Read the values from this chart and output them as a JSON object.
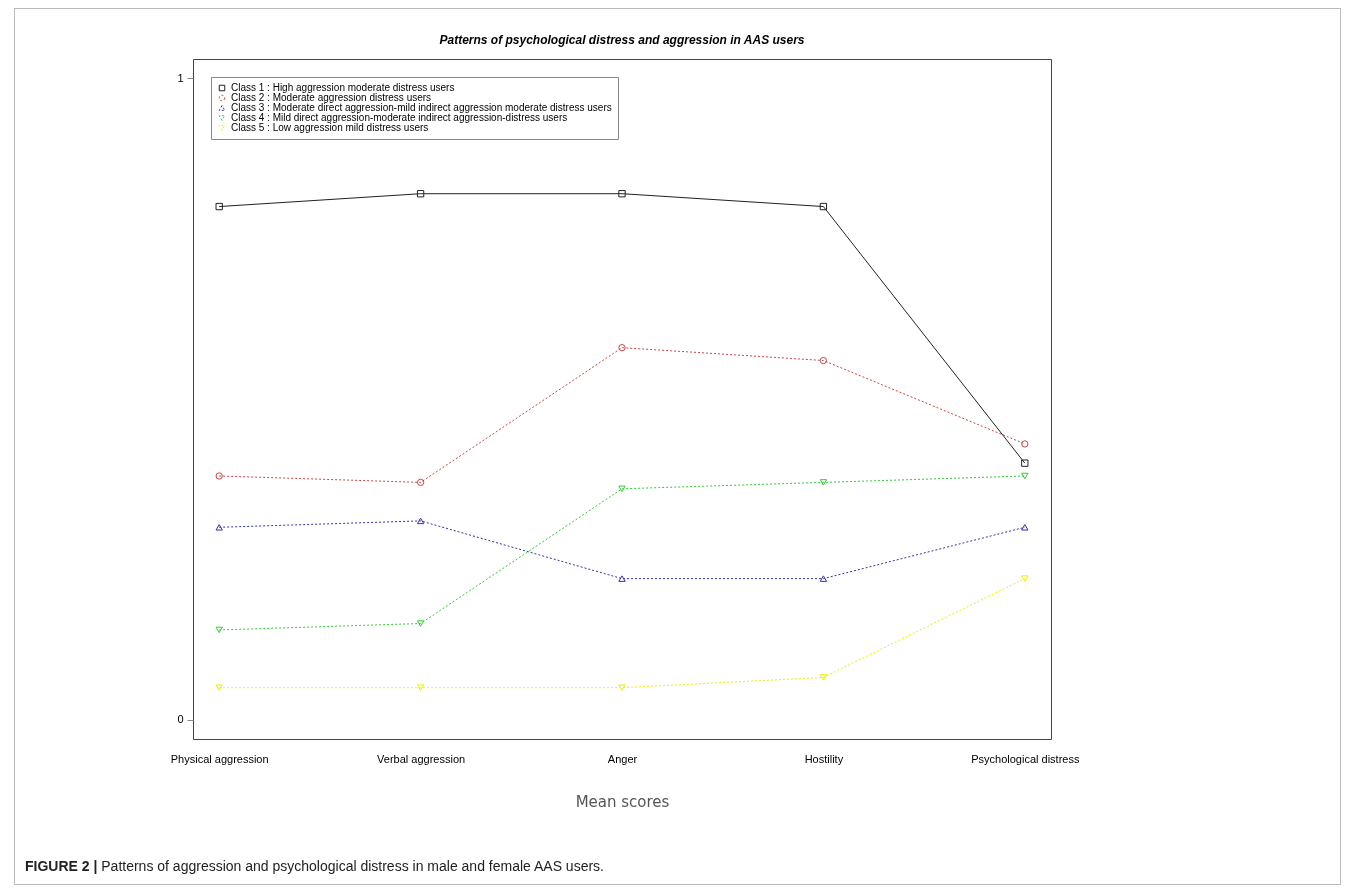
{
  "chart_data": {
    "type": "line",
    "title": "Patterns of psychological distress and aggression in AAS users",
    "xlabel": "Mean scores",
    "categories": [
      "Physical aggression",
      "Verbal aggression",
      "Anger",
      "Hostility",
      "Psychological distress"
    ],
    "series": [
      {
        "name": "Class 1 : High aggression moderate distress users",
        "color": "#222222",
        "marker": "square",
        "line_style": "solid",
        "values": [
          0.8,
          0.82,
          0.82,
          0.8,
          0.4
        ]
      },
      {
        "name": "Class 2 : Moderate aggression distress users",
        "color": "#cc4444",
        "marker": "circle",
        "line_style": "dotted",
        "values": [
          0.38,
          0.37,
          0.58,
          0.56,
          0.43
        ]
      },
      {
        "name": "Class 3 : Moderate direct aggression-mild indirect aggression moderate distress users",
        "color": "#3333aa",
        "marker": "triangle",
        "line_style": "dotted",
        "values": [
          0.3,
          0.31,
          0.22,
          0.22,
          0.3
        ]
      },
      {
        "name": "Class 4 : Mild direct aggression-moderate indirect aggression-distress users",
        "color": "#33cc33",
        "marker": "triangle-down",
        "line_style": "dotted",
        "values": [
          0.14,
          0.15,
          0.36,
          0.37,
          0.38
        ]
      },
      {
        "name": "Class 5 : Low aggression mild distress users",
        "color": "#eeee00",
        "marker": "triangle-down",
        "line_style": "dotted",
        "values": [
          0.05,
          0.05,
          0.05,
          0.066,
          0.22
        ]
      }
    ],
    "ylim": [
      -0.03,
      1.03
    ],
    "yticks": [
      0,
      1
    ],
    "grid": false,
    "legend": "top left",
    "annotations": [
      "FIGURE 2 | Patterns of aggression and psychological distress in male and female AAS users."
    ]
  }
}
